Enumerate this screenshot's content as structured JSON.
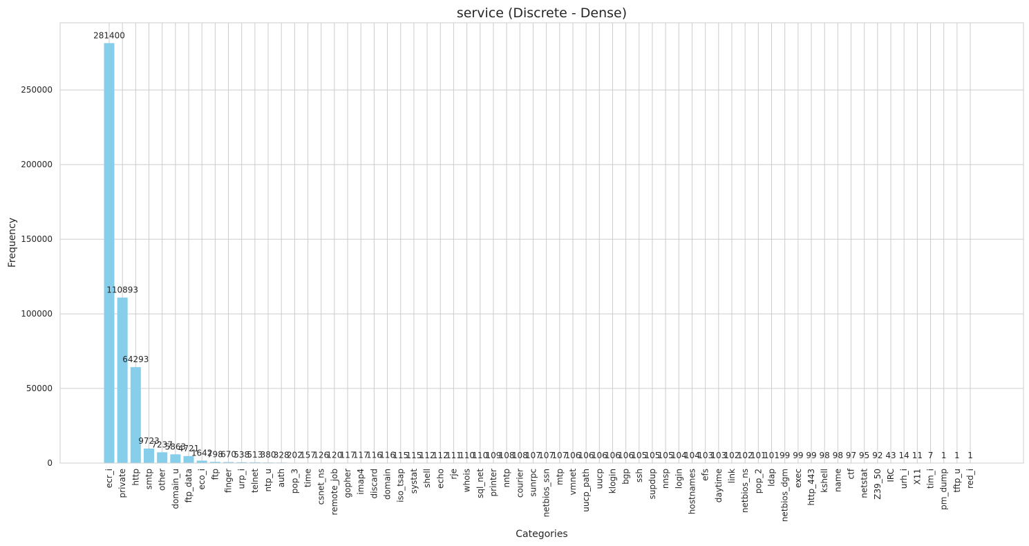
{
  "chart_data": {
    "type": "bar",
    "title": "service (Discrete - Dense)",
    "xlabel": "Categories",
    "ylabel": "Frequency",
    "ylim": [
      0,
      295000
    ],
    "yticks": [
      0,
      50000,
      100000,
      150000,
      200000,
      250000
    ],
    "grid": true,
    "bar_color": "#87ceeb",
    "categories": [
      "ecr_i",
      "private",
      "http",
      "smtp",
      "other",
      "domain_u",
      "ftp_data",
      "eco_i",
      "ftp",
      "finger",
      "urp_i",
      "telnet",
      "ntp_u",
      "auth",
      "pop_3",
      "time",
      "csnet_ns",
      "remote_job",
      "gopher",
      "imap4",
      "discard",
      "domain",
      "iso_tsap",
      "systat",
      "shell",
      "echo",
      "rje",
      "whois",
      "sql_net",
      "printer",
      "nntp",
      "courier",
      "sunrpc",
      "netbios_ssn",
      "mtp",
      "vmnet",
      "uucp_path",
      "uucp",
      "klogin",
      "bgp",
      "ssh",
      "supdup",
      "nnsp",
      "login",
      "hostnames",
      "efs",
      "daytime",
      "link",
      "netbios_ns",
      "pop_2",
      "ldap",
      "netbios_dgm",
      "exec",
      "http_443",
      "kshell",
      "name",
      "ctf",
      "netstat",
      "Z39_50",
      "IRC",
      "urh_i",
      "X11",
      "tim_i",
      "pm_dump",
      "tftp_u",
      "red_i"
    ],
    "values": [
      281400,
      110893,
      64293,
      9723,
      7237,
      5863,
      4721,
      1642,
      798,
      670,
      538,
      513,
      380,
      328,
      202,
      157,
      126,
      120,
      117,
      117,
      116,
      116,
      115,
      115,
      112,
      112,
      111,
      110,
      110,
      109,
      108,
      108,
      107,
      107,
      107,
      106,
      106,
      106,
      106,
      106,
      105,
      105,
      105,
      104,
      104,
      103,
      103,
      102,
      102,
      101,
      101,
      99,
      99,
      99,
      98,
      98,
      97,
      95,
      92,
      43,
      14,
      11,
      7,
      1,
      1,
      1
    ]
  }
}
